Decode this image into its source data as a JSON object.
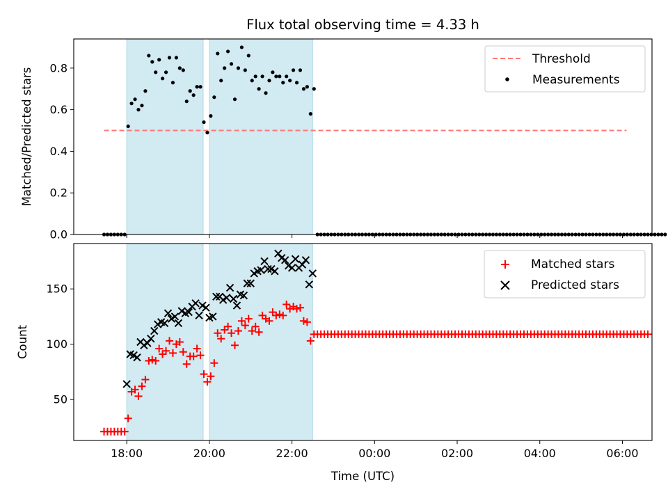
{
  "chart_data": [
    {
      "type": "scatter",
      "title": "Flux total observing time = 4.33 h",
      "ylabel": "Matched/Predicted stars",
      "xlabel": "",
      "xlim": [
        "2023-01-01T16:43",
        "2023-01-02T06:43"
      ],
      "ylim": [
        0,
        0.94
      ],
      "yticks": [
        0.0,
        0.2,
        0.4,
        0.6,
        0.8
      ],
      "ytick_labels": [
        "0.0",
        "0.2",
        "0.4",
        "0.6",
        "0.8"
      ],
      "xticks": [
        "2023-01-01T18:00",
        "2023-01-01T20:00",
        "2023-01-01T22:00",
        "2023-01-02T00:00",
        "2023-01-02T02:00",
        "2023-01-02T04:00",
        "2023-01-02T06:00"
      ],
      "xtick_labels": [
        "",
        "",
        "",
        "",
        "",
        "",
        ""
      ],
      "grid": false,
      "legend": "top-right",
      "shaded_intervals": [
        {
          "start": "2023-01-01T18:00",
          "end": "2023-01-01T19:51",
          "color": "#add8e6"
        },
        {
          "start": "2023-01-01T20:00",
          "end": "2023-01-01T22:30",
          "color": "#add8e6"
        }
      ],
      "series": [
        {
          "name": "Threshold",
          "kind": "line",
          "style": "dashed",
          "color": "#ff7777",
          "x": [
            "2023-01-01T17:27",
            "2023-01-02T06:06"
          ],
          "y": [
            0.5,
            0.5
          ]
        },
        {
          "name": "Measurements",
          "kind": "scatter",
          "marker": "dot",
          "color": "#000000",
          "x_start": "2023-01-01T17:27",
          "x_step_minutes": 5,
          "y": [
            0.0,
            0.0,
            0.0,
            0.0,
            0.0,
            0.0,
            0.0,
            0.52,
            0.63,
            0.65,
            0.6,
            0.62,
            0.69,
            0.86,
            0.83,
            0.78,
            0.84,
            0.75,
            0.78,
            0.85,
            0.73,
            0.85,
            0.8,
            0.79,
            0.64,
            0.69,
            0.67,
            0.71,
            0.71,
            0.54,
            0.49,
            0.57,
            0.66,
            0.87,
            0.74,
            0.8,
            0.88,
            0.82,
            0.65,
            0.8,
            0.9,
            0.79,
            0.86,
            0.74,
            0.76,
            0.7,
            0.76,
            0.68,
            0.74,
            0.78,
            0.76,
            0.76,
            0.73,
            0.76,
            0.74,
            0.79,
            0.73,
            0.79,
            0.7,
            0.71,
            0.58,
            0.7,
            0.0,
            0.0,
            0.0,
            0.0,
            0.0,
            0.0,
            0.0,
            0.0,
            0.0,
            0.0,
            0.0,
            0.0,
            0.0,
            0.0,
            0.0,
            0.0,
            0.0,
            0.0,
            0.0,
            0.0,
            0.0,
            0.0,
            0.0,
            0.0,
            0.0,
            0.0,
            0.0,
            0.0,
            0.0,
            0.0,
            0.0,
            0.0,
            0.0,
            0.0,
            0.0,
            0.0,
            0.0,
            0.0,
            0.0,
            0.0,
            0.0,
            0.0,
            0.0,
            0.0,
            0.0,
            0.0,
            0.0,
            0.0,
            0.0,
            0.0,
            0.0,
            0.0,
            0.0,
            0.0,
            0.0,
            0.0,
            0.0,
            0.0,
            0.0,
            0.0,
            0.0,
            0.0,
            0.0,
            0.0,
            0.0,
            0.0,
            0.0,
            0.0,
            0.0,
            0.0,
            0.0,
            0.0,
            0.0,
            0.0,
            0.0,
            0.0,
            0.0,
            0.0,
            0.0,
            0.0,
            0.0,
            0.0,
            0.0,
            0.0,
            0.0,
            0.0,
            0.0,
            0.0,
            0.0,
            0.0,
            0.0,
            0.0,
            0.0,
            0.0,
            0.0,
            0.0,
            0.0,
            0.0,
            0.0,
            0.0,
            0.0,
            0.0
          ]
        }
      ]
    },
    {
      "type": "scatter",
      "title": "",
      "ylabel": "Count",
      "xlabel": "Time (UTC)",
      "xlim": [
        "2023-01-01T16:43",
        "2023-01-02T06:43"
      ],
      "ylim": [
        13,
        191
      ],
      "yticks": [
        50,
        100,
        150
      ],
      "ytick_labels": [
        "50",
        "100",
        "150"
      ],
      "xticks": [
        "2023-01-01T18:00",
        "2023-01-01T20:00",
        "2023-01-01T22:00",
        "2023-01-02T00:00",
        "2023-01-02T02:00",
        "2023-01-02T04:00",
        "2023-01-02T06:00"
      ],
      "xtick_labels": [
        "18:00",
        "20:00",
        "22:00",
        "00:00",
        "02:00",
        "04:00",
        "06:00"
      ],
      "grid": false,
      "legend": "top-right",
      "shaded_intervals": [
        {
          "start": "2023-01-01T18:00",
          "end": "2023-01-01T19:51",
          "color": "#add8e6"
        },
        {
          "start": "2023-01-01T20:00",
          "end": "2023-01-01T22:30",
          "color": "#add8e6"
        }
      ],
      "series": [
        {
          "name": "Matched stars",
          "kind": "scatter",
          "marker": "plus",
          "color": "#ff0000",
          "x_start": "2023-01-01T17:27",
          "x_step_minutes": 5,
          "y": [
            21,
            21,
            21,
            21,
            21,
            21,
            21,
            33,
            57,
            59,
            53,
            62,
            68,
            85,
            86,
            85,
            96,
            91,
            94,
            103,
            92,
            100,
            102,
            93,
            82,
            89,
            89,
            96,
            90,
            73,
            66,
            71,
            83,
            110,
            105,
            113,
            116,
            110,
            99,
            112,
            121,
            117,
            123,
            112,
            116,
            111,
            126,
            123,
            121,
            129,
            126,
            127,
            126,
            136,
            132,
            134,
            132,
            133,
            121,
            120,
            103,
            109,
            109,
            109,
            109,
            109,
            109,
            109,
            109,
            109,
            109,
            109,
            109,
            109,
            109,
            109,
            109,
            109,
            109,
            109,
            109,
            109,
            109,
            109,
            109,
            109,
            109,
            109,
            109,
            109,
            109,
            109,
            109,
            109,
            109,
            109,
            109,
            109,
            109,
            109,
            109,
            109,
            109,
            109,
            109,
            109,
            109,
            109,
            109,
            109,
            109,
            109,
            109,
            109,
            109,
            109,
            109,
            109,
            109,
            109,
            109,
            109,
            109,
            109,
            109,
            109,
            109,
            109,
            109,
            109,
            109,
            109,
            109,
            109,
            109,
            109,
            109,
            109,
            109,
            109,
            109,
            109,
            109,
            109,
            109,
            109,
            109,
            109,
            109,
            109,
            109,
            109,
            109,
            109,
            109,
            109,
            109,
            109,
            109
          ]
        },
        {
          "name": "Predicted stars",
          "kind": "scatter",
          "marker": "x",
          "color": "#000000",
          "x": [
            "2023-01-01T18:00",
            "2023-01-01T18:05",
            "2023-01-01T18:10",
            "2023-01-01T18:15",
            "2023-01-01T18:20",
            "2023-01-01T18:25",
            "2023-01-01T18:30",
            "2023-01-01T18:35",
            "2023-01-01T18:40",
            "2023-01-01T18:45",
            "2023-01-01T18:50",
            "2023-01-01T18:55",
            "2023-01-01T19:00",
            "2023-01-01T19:05",
            "2023-01-01T19:10",
            "2023-01-01T19:15",
            "2023-01-01T19:20",
            "2023-01-01T19:25",
            "2023-01-01T19:30",
            "2023-01-01T19:35",
            "2023-01-01T19:40",
            "2023-01-01T19:45",
            "2023-01-01T19:50",
            "2023-01-01T19:55",
            "2023-01-01T20:00",
            "2023-01-01T20:05",
            "2023-01-01T20:10",
            "2023-01-01T20:15",
            "2023-01-01T20:20",
            "2023-01-01T20:25",
            "2023-01-01T20:30",
            "2023-01-01T20:35",
            "2023-01-01T20:40",
            "2023-01-01T20:45",
            "2023-01-01T20:50",
            "2023-01-01T20:55",
            "2023-01-01T21:00",
            "2023-01-01T21:05",
            "2023-01-01T21:10",
            "2023-01-01T21:15",
            "2023-01-01T21:20",
            "2023-01-01T21:25",
            "2023-01-01T21:30",
            "2023-01-01T21:35",
            "2023-01-01T21:40",
            "2023-01-01T21:45",
            "2023-01-01T21:50",
            "2023-01-01T21:55",
            "2023-01-01T22:00",
            "2023-01-01T22:05",
            "2023-01-01T22:10",
            "2023-01-01T22:15",
            "2023-01-01T22:20",
            "2023-01-01T22:25",
            "2023-01-01T22:30"
          ],
          "y": [
            64,
            91,
            90,
            88,
            102,
            99,
            101,
            105,
            112,
            118,
            120,
            119,
            128,
            123,
            125,
            119,
            130,
            128,
            129,
            134,
            137,
            126,
            135,
            133,
            124,
            125,
            143,
            143,
            140,
            142,
            151,
            141,
            135,
            145,
            144,
            155,
            155,
            164,
            166,
            167,
            175,
            168,
            168,
            166,
            182,
            178,
            176,
            171,
            169,
            177,
            169,
            172,
            176,
            154,
            164
          ]
        }
      ]
    }
  ]
}
